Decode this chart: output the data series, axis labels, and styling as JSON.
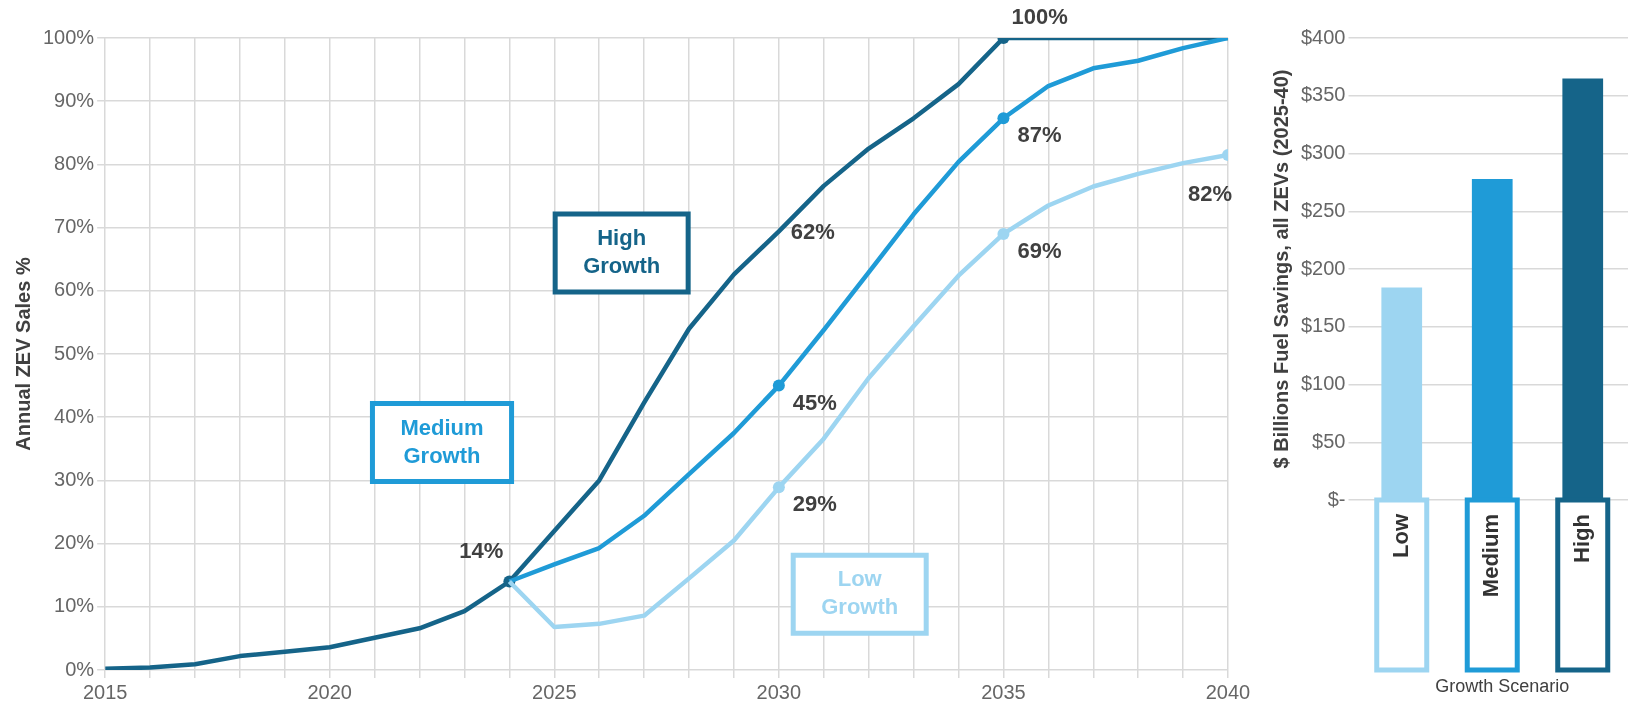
{
  "chart_data": [
    {
      "type": "line",
      "ylabel": "Annual ZEV Sales %",
      "x": [
        2015,
        2016,
        2017,
        2018,
        2019,
        2020,
        2021,
        2022,
        2023,
        2024,
        2025,
        2026,
        2027,
        2028,
        2029,
        2030,
        2031,
        2032,
        2033,
        2034,
        2035,
        2036,
        2037,
        2038,
        2039,
        2040
      ],
      "series": [
        {
          "name": "High Growth",
          "color": "#156489",
          "values": [
            0.2,
            0.4,
            0.9,
            2.2,
            2.9,
            3.6,
            5.1,
            6.6,
            9.3,
            14,
            22,
            30,
            42.3,
            54,
            62.6,
            69.4,
            76.6,
            82.5,
            87.3,
            92.7,
            100,
            100,
            100,
            100,
            100,
            100
          ],
          "value_labels": [
            null,
            null,
            null,
            null,
            null,
            null,
            null,
            null,
            null,
            "14%",
            null,
            null,
            null,
            null,
            null,
            null,
            null,
            null,
            null,
            null,
            "100%",
            null,
            null,
            null,
            null,
            null
          ]
        },
        {
          "name": "Medium Growth",
          "color": "#1f9bd7",
          "x": [
            2024,
            2025,
            2026,
            2027,
            2028,
            2029,
            2030,
            2031,
            2032,
            2033,
            2034,
            2035,
            2036,
            2037,
            2038,
            2039,
            2040
          ],
          "values": [
            14,
            16.7,
            19.3,
            24.4,
            31,
            37.5,
            45,
            53.8,
            62.9,
            72.1,
            80.4,
            87.3,
            92.4,
            95.2,
            96.4,
            98.4,
            100
          ],
          "value_labels": [
            null,
            null,
            null,
            null,
            null,
            null,
            "45%",
            null,
            null,
            null,
            null,
            "87%",
            null,
            null,
            null,
            null,
            null
          ]
        },
        {
          "name": "Low Growth",
          "color": "#9dd5f1",
          "x": [
            2024,
            2025,
            2026,
            2027,
            2028,
            2029,
            2030,
            2031,
            2032,
            2033,
            2034,
            2035,
            2036,
            2037,
            2038,
            2039,
            2040
          ],
          "values": [
            14,
            6.8,
            7.3,
            8.6,
            14.5,
            20.5,
            28.9,
            36.6,
            46.2,
            54.4,
            62.4,
            69,
            73.5,
            76.5,
            78.5,
            80.2,
            81.5
          ],
          "value_labels": [
            null,
            null,
            null,
            null,
            null,
            null,
            "29%",
            null,
            null,
            null,
            null,
            "69%",
            null,
            null,
            null,
            null,
            "82%"
          ]
        }
      ],
      "xlim": [
        2015,
        2040
      ],
      "xticks": [
        2015,
        {
          "value": 2016,
          "label": null
        },
        {
          "value": 2017,
          "label": null
        },
        {
          "value": 2018,
          "label": null
        },
        {
          "value": 2019,
          "label": null
        },
        2020,
        {
          "value": 2021,
          "label": null
        },
        {
          "value": 2022,
          "label": null
        },
        {
          "value": 2023,
          "label": null
        },
        {
          "value": 2024,
          "label": null
        },
        2025,
        {
          "value": 2026,
          "label": null
        },
        {
          "value": 2027,
          "label": null
        },
        {
          "value": 2028,
          "label": null
        },
        {
          "value": 2029,
          "label": null
        },
        2030,
        {
          "value": 2031,
          "label": null
        },
        {
          "value": 2032,
          "label": null
        },
        {
          "value": 2033,
          "label": null
        },
        {
          "value": 2034,
          "label": null
        },
        2035,
        {
          "value": 2036,
          "label": null
        },
        {
          "value": 2037,
          "label": null
        },
        {
          "value": 2038,
          "label": null
        },
        {
          "value": 2039,
          "label": null
        },
        2040
      ],
      "ylim": [
        0,
        100
      ],
      "yticks": [
        {
          "value": 0,
          "label": "0%"
        },
        {
          "value": 10,
          "label": "10%"
        },
        {
          "value": 20,
          "label": "20%"
        },
        {
          "value": 30,
          "label": "30%"
        },
        {
          "value": 40,
          "label": "40%"
        },
        {
          "value": 50,
          "label": "50%"
        },
        {
          "value": 60,
          "label": "60%"
        },
        {
          "value": 70,
          "label": "70%"
        },
        {
          "value": 80,
          "label": "80%"
        },
        {
          "value": 90,
          "label": "90%"
        },
        {
          "value": 100,
          "label": "100%"
        }
      ],
      "annotations": [
        {
          "text": "62%",
          "x": 2030,
          "y": 69.4
        }
      ],
      "grid": true,
      "legend": false,
      "line_style": "solid"
    },
    {
      "type": "bar",
      "xlabel": "Growth Scenario",
      "ylabel": "$ Billions Fuel Savings, all ZEVs (2025-40)",
      "categories": [
        "Low",
        "Medium",
        "High"
      ],
      "values": [
        184,
        278,
        365
      ],
      "colors": [
        "#9dd5f1",
        "#1f9bd7",
        "#156489"
      ],
      "ylim": [
        0,
        400
      ],
      "yticks": [
        {
          "value": 0,
          "label": "$-"
        },
        {
          "value": 50,
          "label": "$50"
        },
        {
          "value": 100,
          "label": "$100"
        },
        {
          "value": 150,
          "label": "$150"
        },
        {
          "value": 200,
          "label": "$200"
        },
        {
          "value": 250,
          "label": "$250"
        },
        {
          "value": 300,
          "label": "$300"
        },
        {
          "value": 350,
          "label": "$350"
        },
        {
          "value": 400,
          "label": "$400"
        }
      ],
      "grid": "y",
      "legend": false
    }
  ]
}
